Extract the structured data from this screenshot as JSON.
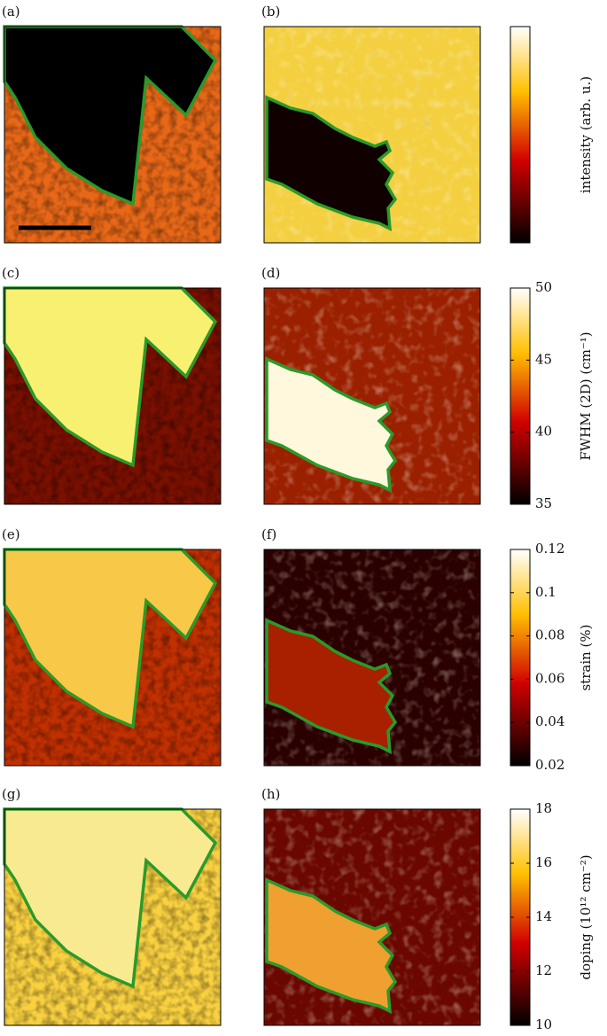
{
  "panels": [
    {
      "label": "(a)"
    },
    {
      "label": "(b)"
    },
    {
      "label": "(c)"
    },
    {
      "label": "(d)"
    },
    {
      "label": "(e)"
    },
    {
      "label": "(f)"
    },
    {
      "label": "(g)"
    },
    {
      "label": "(h)"
    }
  ],
  "colorbars": [
    {
      "label": "intensity (arb. u.)"
    },
    {
      "label": "FWHM (2D) (cm⁻¹)",
      "ylim": [
        35,
        50
      ],
      "yticks": [
        35,
        40,
        45,
        50
      ]
    },
    {
      "label": "strain (%)",
      "ylim": [
        0.02,
        0.12
      ],
      "yticks": [
        0.02,
        0.04,
        0.06,
        0.08,
        0.1,
        0.12
      ]
    },
    {
      "label": "doping (10¹² cm⁻²)",
      "ylim": [
        10,
        18
      ],
      "yticks": [
        10,
        12,
        14,
        16,
        18
      ]
    }
  ]
}
